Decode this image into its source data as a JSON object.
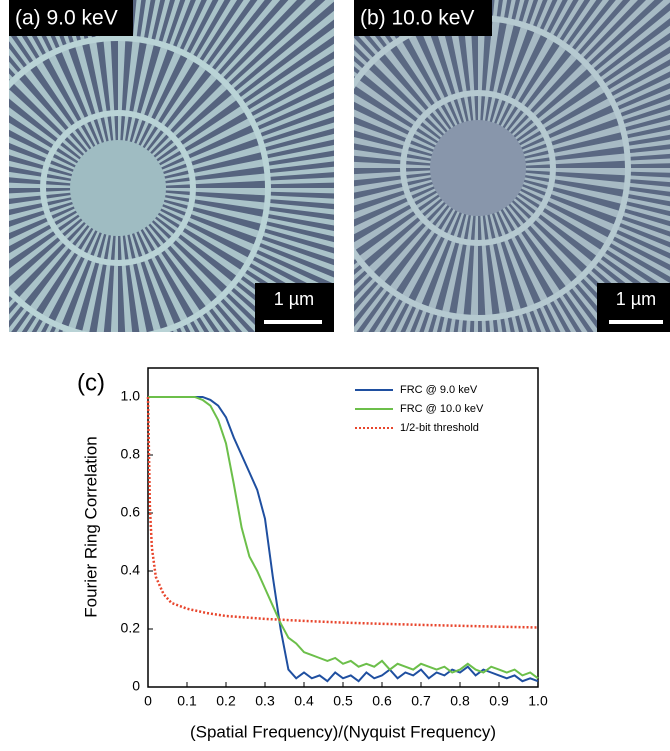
{
  "panels": [
    {
      "label": "(a) 9.0 keV",
      "scale_bar": "1 µm"
    },
    {
      "label": "(b) 10.0 keV",
      "scale_bar": "1 µm"
    }
  ],
  "chart_data": {
    "type": "line",
    "panel_label": "(c)",
    "x_label": "(Spatial Frequency)/(Nyquist Frequency)",
    "y_label": "Fourier Ring Correlation",
    "xlim": [
      0,
      1
    ],
    "ylim": [
      0,
      1.1
    ],
    "xticks": [
      0,
      0.1,
      0.2,
      0.3,
      0.4,
      0.5,
      0.6,
      0.7,
      0.8,
      0.9,
      {
        "value": 1,
        "label": "1.0"
      }
    ],
    "yticks": [
      0,
      0.2,
      0.4,
      0.6,
      0.8,
      {
        "value": 1,
        "label": "1.0"
      }
    ],
    "legend": "top-right",
    "x": [
      0,
      0.02,
      0.04,
      0.06,
      0.08,
      0.1,
      0.12,
      0.14,
      0.16,
      0.18,
      0.2,
      0.22,
      0.24,
      0.26,
      0.28,
      0.3,
      0.32,
      0.34,
      0.36,
      0.38,
      0.4,
      0.42,
      0.44,
      0.46,
      0.48,
      0.5,
      0.52,
      0.54,
      0.56,
      0.58,
      0.6,
      0.62,
      0.64,
      0.66,
      0.68,
      0.7,
      0.72,
      0.74,
      0.76,
      0.78,
      0.8,
      0.82,
      0.84,
      0.86,
      0.88,
      0.9,
      0.92,
      0.94,
      0.96,
      0.98,
      1
    ],
    "series": [
      {
        "name": "FRC @ 9.0 keV",
        "color": "#1f4fa0",
        "style": "solid",
        "values": [
          1,
          1,
          1,
          1,
          1,
          1,
          1,
          1,
          0.99,
          0.97,
          0.93,
          0.86,
          0.8,
          0.74,
          0.68,
          0.58,
          0.38,
          0.2,
          0.06,
          0.03,
          0.05,
          0.03,
          0.04,
          0.02,
          0.05,
          0.03,
          0.04,
          0.02,
          0.05,
          0.03,
          0.04,
          0.06,
          0.03,
          0.05,
          0.04,
          0.06,
          0.03,
          0.05,
          0.04,
          0.06,
          0.05,
          0.07,
          0.04,
          0.06,
          0.05,
          0.04,
          0.03,
          0.04,
          0.02,
          0.03,
          0.02
        ]
      },
      {
        "name": "FRC @ 10.0 keV",
        "color": "#6cbf4a",
        "style": "solid",
        "values": [
          1,
          1,
          1,
          1,
          1,
          1,
          1,
          0.99,
          0.97,
          0.92,
          0.84,
          0.7,
          0.55,
          0.45,
          0.4,
          0.34,
          0.28,
          0.22,
          0.17,
          0.15,
          0.12,
          0.11,
          0.1,
          0.09,
          0.1,
          0.08,
          0.09,
          0.07,
          0.08,
          0.07,
          0.09,
          0.06,
          0.08,
          0.07,
          0.06,
          0.08,
          0.07,
          0.06,
          0.07,
          0.05,
          0.06,
          0.08,
          0.06,
          0.05,
          0.07,
          0.06,
          0.05,
          0.06,
          0.04,
          0.05,
          0.03
        ]
      },
      {
        "name": "1/2-bit threshold",
        "color": "#e8452c",
        "style": "dotted",
        "x": [
          0,
          0.005,
          0.01,
          0.02,
          0.04,
          0.06,
          0.1,
          0.15,
          0.2,
          0.3,
          0.4,
          0.5,
          0.6,
          0.7,
          0.8,
          0.9,
          1
        ],
        "values": [
          1,
          0.62,
          0.48,
          0.38,
          0.32,
          0.29,
          0.27,
          0.255,
          0.245,
          0.235,
          0.228,
          0.222,
          0.218,
          0.214,
          0.211,
          0.208,
          0.205
        ]
      }
    ]
  }
}
